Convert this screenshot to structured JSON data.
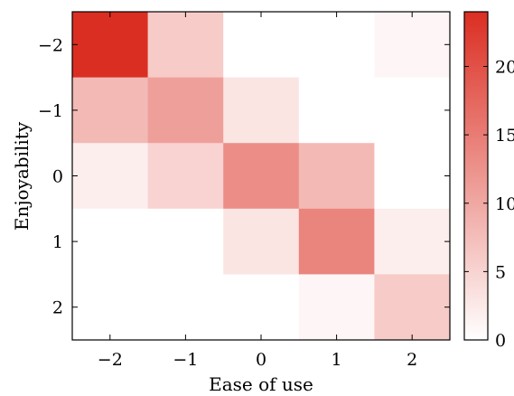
{
  "chart_data": {
    "type": "heatmap",
    "title": "",
    "xlabel": "Ease of use",
    "ylabel": "Enjoyability",
    "x_categories": [
      "−2",
      "−1",
      "0",
      "1",
      "2"
    ],
    "y_categories": [
      "−2",
      "−1",
      "0",
      "1",
      "2"
    ],
    "values": [
      [
        24,
        6,
        0,
        0,
        1
      ],
      [
        8,
        11,
        3,
        0,
        0
      ],
      [
        2,
        5,
        13,
        8,
        0
      ],
      [
        0,
        0,
        3,
        14,
        2
      ],
      [
        0,
        0,
        0,
        1,
        6
      ]
    ],
    "colorbar": {
      "range": [
        0,
        24
      ],
      "ticks": [
        "0",
        "5",
        "10",
        "15",
        "20"
      ],
      "tick_values": [
        0,
        5,
        10,
        15,
        20
      ]
    },
    "colors": {
      "low": "#ffffff",
      "high": "#db2e22"
    }
  }
}
